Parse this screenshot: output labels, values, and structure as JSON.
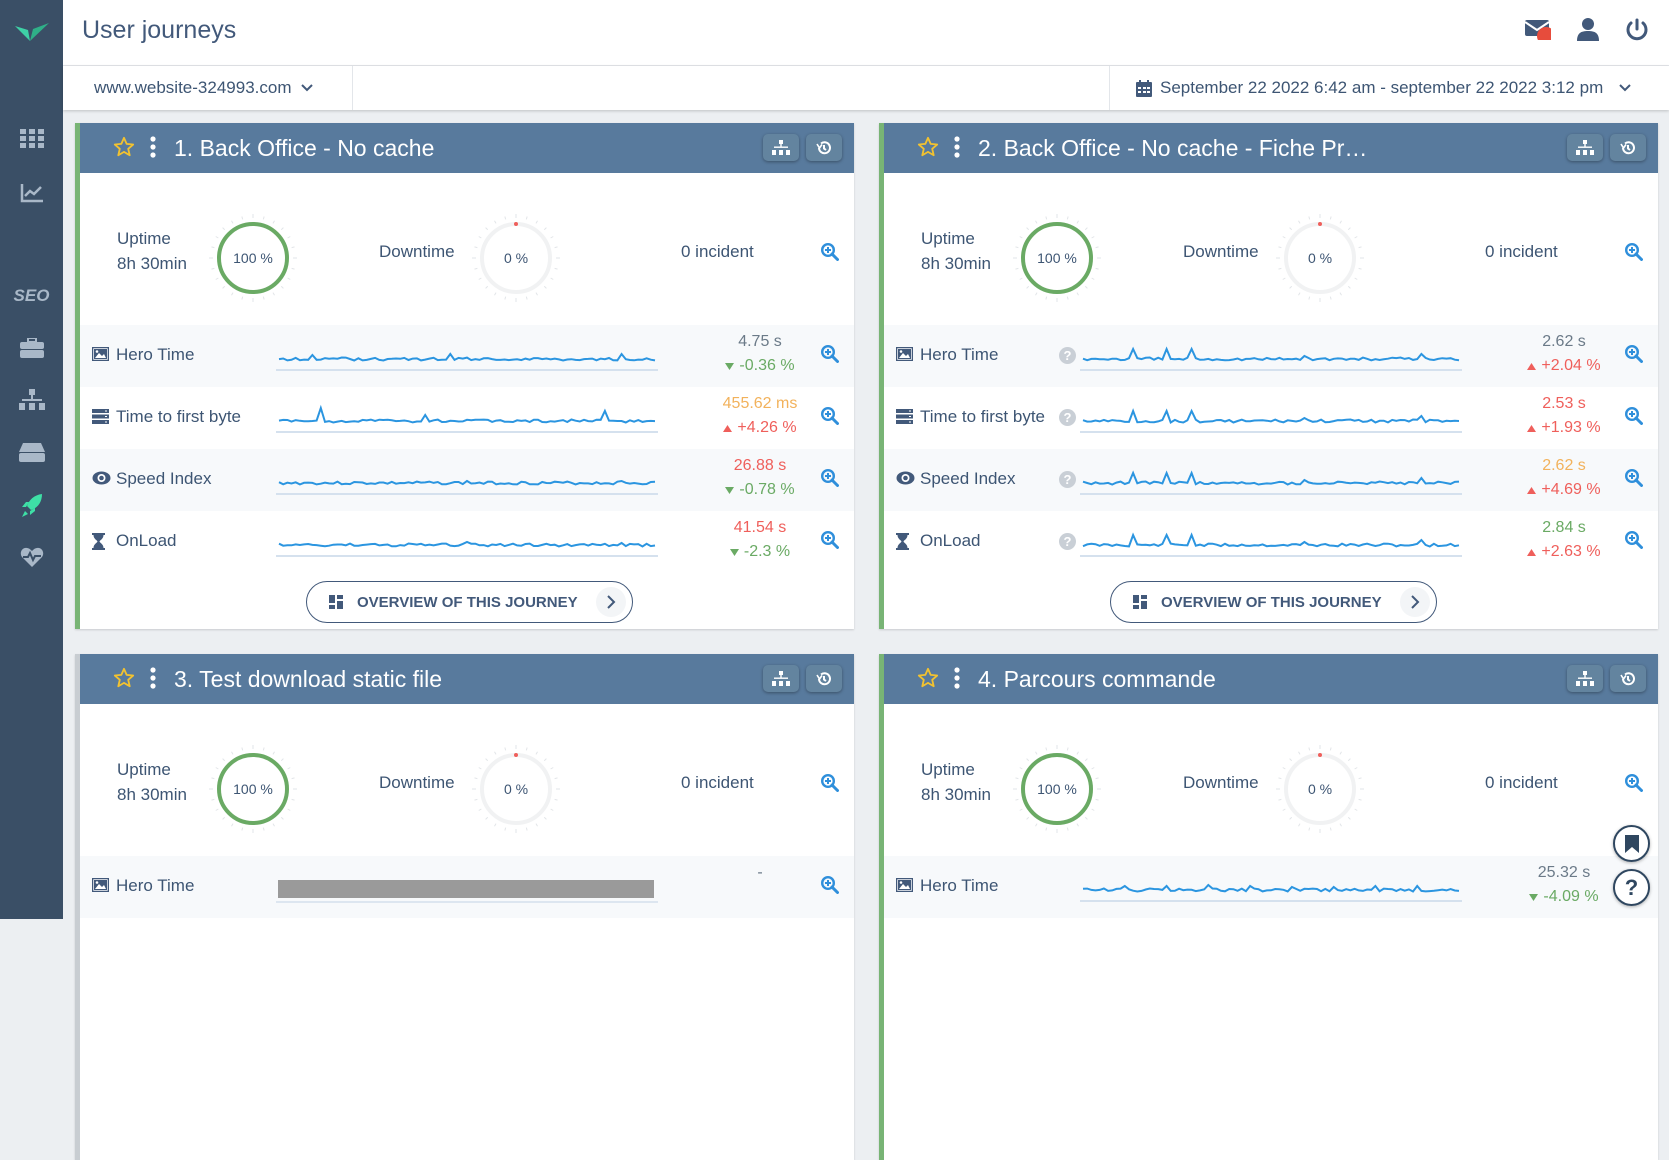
{
  "header": {
    "title": "User journeys"
  },
  "site_selector": {
    "value": "www.website-324993.com"
  },
  "date_range": {
    "value": "September 22 2022 6:42 am - september 22 2022 3:12 pm"
  },
  "sidebar": {
    "items": [
      "dashboard",
      "charts",
      "SEO",
      "briefcase",
      "sitemap",
      "storage",
      "user-journeys",
      "monitoring"
    ],
    "active": "user-journeys"
  },
  "notifications": {
    "badge_color": "#e74c3c"
  },
  "overview_label": "OVERVIEW OF THIS JOURNEY",
  "cards": [
    {
      "title": "1. Back Office - No cache",
      "status_color": "#78b475",
      "help": false,
      "uptime_label": "Uptime",
      "uptime_duration": "8h 30min",
      "uptime_pct": "100 %",
      "downtime_label": "Downtime",
      "downtime_pct": "0 %",
      "incidents": "0 incident",
      "metrics": [
        {
          "icon": "image-icon",
          "label": "Hero Time",
          "value": "4.75 s",
          "value_color": "#6b7a88",
          "delta": "-0.36 %",
          "trend": "down",
          "delta_color": "#6aaa64"
        },
        {
          "icon": "server-icon",
          "label": "Time to first byte",
          "value": "455.62 ms",
          "value_color": "#f2b25c",
          "delta": "+4.26 %",
          "trend": "up",
          "delta_color": "#ef5f5b"
        },
        {
          "icon": "eye-icon",
          "label": "Speed Index",
          "value": "26.88 s",
          "value_color": "#ef5f5b",
          "delta": "-0.78 %",
          "trend": "down",
          "delta_color": "#6aaa64"
        },
        {
          "icon": "hourglass-icon",
          "label": "OnLoad",
          "value": "41.54 s",
          "value_color": "#ef5f5b",
          "delta": "-2.3 %",
          "trend": "down",
          "delta_color": "#6aaa64"
        }
      ]
    },
    {
      "title": "2. Back Office - No cache - Fiche Pr…",
      "status_color": "#78b475",
      "help": true,
      "uptime_label": "Uptime",
      "uptime_duration": "8h 30min",
      "uptime_pct": "100 %",
      "downtime_label": "Downtime",
      "downtime_pct": "0 %",
      "incidents": "0 incident",
      "metrics": [
        {
          "icon": "image-icon",
          "label": "Hero Time",
          "value": "2.62 s",
          "value_color": "#6b7a88",
          "delta": "+2.04 %",
          "trend": "up",
          "delta_color": "#ef5f5b"
        },
        {
          "icon": "server-icon",
          "label": "Time to first byte",
          "value": "2.53 s",
          "value_color": "#ef5f5b",
          "delta": "+1.93 %",
          "trend": "up",
          "delta_color": "#ef5f5b"
        },
        {
          "icon": "eye-icon",
          "label": "Speed Index",
          "value": "2.62 s",
          "value_color": "#f2b25c",
          "delta": "+4.69 %",
          "trend": "up",
          "delta_color": "#ef5f5b"
        },
        {
          "icon": "hourglass-icon",
          "label": "OnLoad",
          "value": "2.84 s",
          "value_color": "#6aaa64",
          "delta": "+2.63 %",
          "trend": "up",
          "delta_color": "#ef5f5b"
        }
      ]
    },
    {
      "title": "3. Test download static file",
      "status_color": "#c8cdd2",
      "help": false,
      "uptime_label": "Uptime",
      "uptime_duration": "8h 30min",
      "uptime_pct": "100 %",
      "downtime_label": "Downtime",
      "downtime_pct": "0 %",
      "incidents": "0 incident",
      "metrics": [
        {
          "icon": "image-icon",
          "label": "Hero Time",
          "value": "-",
          "value_color": "#6b7a88",
          "delta": "",
          "trend": "none",
          "delta_color": "#6b7a88",
          "no_data": true
        }
      ]
    },
    {
      "title": "4. Parcours commande",
      "status_color": "#78b475",
      "help": false,
      "uptime_label": "Uptime",
      "uptime_duration": "8h 30min",
      "uptime_pct": "100 %",
      "downtime_label": "Downtime",
      "downtime_pct": "0 %",
      "incidents": "0 incident",
      "metrics": [
        {
          "icon": "image-icon",
          "label": "Hero Time",
          "value": "25.32 s",
          "value_color": "#6b7a88",
          "delta": "-4.09 %",
          "trend": "down",
          "delta_color": "#6aaa64"
        }
      ]
    }
  ]
}
